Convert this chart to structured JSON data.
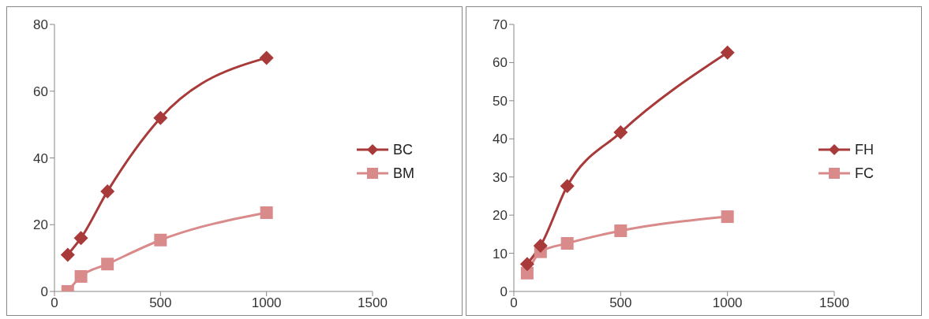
{
  "chart_data": [
    {
      "type": "line",
      "x": [
        62.5,
        125,
        250,
        500,
        1000
      ],
      "xlim": [
        0,
        1500
      ],
      "xticks": [
        0,
        500,
        1000,
        1500
      ],
      "ylim": [
        0,
        80
      ],
      "yticks": [
        0,
        20,
        40,
        60,
        80
      ],
      "grid": false,
      "legend": "right",
      "series": [
        {
          "name": "BC",
          "color": "#a83a3a",
          "marker": "diamond",
          "values": [
            11,
            16,
            30,
            52,
            70
          ]
        },
        {
          "name": "BM",
          "color": "#d98a8a",
          "marker": "square",
          "values": [
            0,
            4.5,
            8.2,
            15.4,
            23.6
          ]
        }
      ]
    },
    {
      "type": "line",
      "x": [
        62.5,
        125,
        250,
        500,
        1000
      ],
      "xlim": [
        0,
        1500
      ],
      "xticks": [
        0,
        500,
        1000,
        1500
      ],
      "ylim": [
        0,
        70
      ],
      "yticks": [
        0,
        10,
        20,
        30,
        40,
        50,
        60,
        70
      ],
      "grid": false,
      "legend": "right",
      "series": [
        {
          "name": "FH",
          "color": "#a83a3a",
          "marker": "diamond",
          "values": [
            7.2,
            12,
            27.6,
            41.7,
            62.6
          ]
        },
        {
          "name": "FC",
          "color": "#d98a8a",
          "marker": "square",
          "values": [
            4.8,
            10.4,
            12.6,
            15.9,
            19.6
          ]
        }
      ]
    }
  ]
}
